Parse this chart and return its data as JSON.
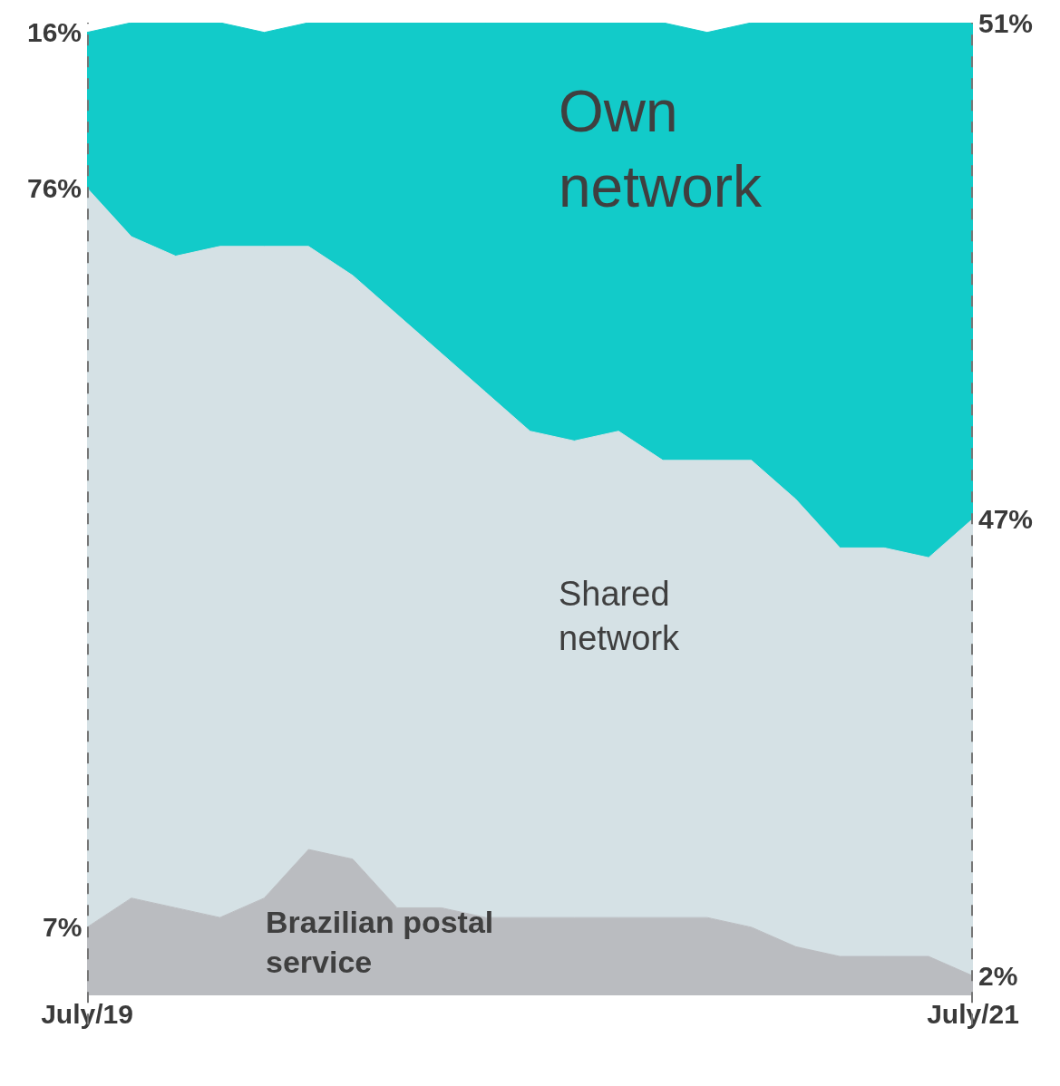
{
  "chart_data": {
    "type": "area",
    "stacked": true,
    "grid": "x",
    "categories": [
      "July/19",
      null,
      null,
      null,
      null,
      null,
      null,
      null,
      null,
      null,
      null,
      null,
      null,
      null,
      null,
      null,
      null,
      null,
      null,
      null,
      "July/21"
    ],
    "series": [
      {
        "name": "Brazilian postal service",
        "color": "#babcc0",
        "values": [
          7,
          10,
          9,
          8,
          10,
          15,
          14,
          9,
          9,
          8,
          8,
          8,
          8,
          8,
          8,
          7,
          5,
          4,
          4,
          4,
          2
        ],
        "value_labels": [
          "7%",
          null,
          null,
          null,
          null,
          null,
          null,
          null,
          null,
          null,
          null,
          null,
          null,
          null,
          null,
          null,
          null,
          null,
          null,
          null,
          "2%"
        ]
      },
      {
        "name": "Shared network",
        "color": "#d5e1e5",
        "values": [
          76,
          68,
          67,
          69,
          67,
          62,
          60,
          61,
          57,
          54,
          50,
          49,
          50,
          47,
          47,
          48,
          46,
          42,
          42,
          41,
          47
        ],
        "value_labels": [
          "76%",
          null,
          null,
          null,
          null,
          null,
          null,
          null,
          null,
          null,
          null,
          null,
          null,
          null,
          null,
          null,
          null,
          null,
          null,
          null,
          "47%"
        ]
      },
      {
        "name": "Own network",
        "color": "#12cbc9",
        "values": [
          16,
          22,
          24,
          23,
          22,
          23,
          26,
          30,
          34,
          38,
          42,
          43,
          42,
          45,
          44,
          45,
          49,
          54,
          54,
          55,
          51
        ],
        "value_labels": [
          "16%",
          null,
          null,
          null,
          null,
          null,
          null,
          null,
          null,
          null,
          null,
          null,
          null,
          null,
          null,
          null,
          null,
          null,
          null,
          null,
          "51%"
        ]
      }
    ]
  }
}
